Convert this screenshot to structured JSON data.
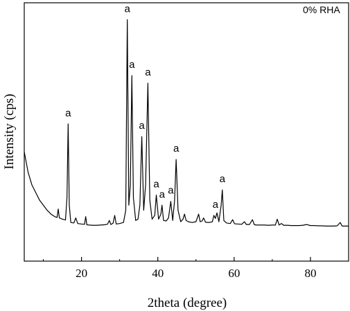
{
  "chart_data": {
    "type": "line",
    "title": "",
    "legend": "0% RHA",
    "legend_position": "top-right",
    "xlabel": "2theta (degree)",
    "ylabel": "Intensity (cps)",
    "xlim": [
      5,
      90
    ],
    "ylim": [
      0,
      100
    ],
    "x_ticks": [
      20,
      40,
      60,
      80
    ],
    "x_tick_labels": [
      "20",
      "40",
      "60",
      "80"
    ],
    "x_minor_ticks": [
      10,
      30,
      50,
      70,
      90
    ],
    "y_ticks_shown": false,
    "grid": false,
    "series": [
      {
        "points": [
          [
            5,
            43
          ],
          [
            6,
            35
          ],
          [
            7,
            30
          ],
          [
            8,
            27
          ],
          [
            9,
            24
          ],
          [
            10,
            22
          ],
          [
            11,
            20
          ],
          [
            12,
            18.5
          ],
          [
            13,
            17.5
          ],
          [
            13.6,
            17.2
          ],
          [
            13.9,
            20.5
          ],
          [
            14.2,
            17
          ],
          [
            15,
            16.5
          ],
          [
            15.8,
            16.2
          ],
          [
            16.2,
            25
          ],
          [
            16.5,
            54
          ],
          [
            16.8,
            22
          ],
          [
            17.2,
            15.2
          ],
          [
            18,
            15
          ],
          [
            18.5,
            17
          ],
          [
            19,
            14.8
          ],
          [
            20,
            14.6
          ],
          [
            20.8,
            14.5
          ],
          [
            21.1,
            17.5
          ],
          [
            21.4,
            14.3
          ],
          [
            22,
            14.2
          ],
          [
            23,
            14.1
          ],
          [
            24,
            14.1
          ],
          [
            25,
            14.2
          ],
          [
            26,
            14.3
          ],
          [
            26.8,
            14.5
          ],
          [
            27.3,
            16
          ],
          [
            27.7,
            14.4
          ],
          [
            28.3,
            15
          ],
          [
            28.7,
            18
          ],
          [
            29.1,
            14.6
          ],
          [
            30,
            14.8
          ],
          [
            31,
            15.2
          ],
          [
            31.6,
            20
          ],
          [
            32,
            95
          ],
          [
            32.4,
            22
          ],
          [
            32.8,
            30
          ],
          [
            33.2,
            73
          ],
          [
            33.6,
            25
          ],
          [
            34.2,
            16
          ],
          [
            34.8,
            16.5
          ],
          [
            35.3,
            22
          ],
          [
            35.8,
            49
          ],
          [
            36.3,
            20
          ],
          [
            36.8,
            30
          ],
          [
            37.4,
            70
          ],
          [
            37.9,
            24
          ],
          [
            38.5,
            16.5
          ],
          [
            39.2,
            18
          ],
          [
            39.6,
            26
          ],
          [
            40.2,
            16.5
          ],
          [
            40.8,
            18.5
          ],
          [
            41.1,
            22
          ],
          [
            41.5,
            16
          ],
          [
            42.2,
            15.8
          ],
          [
            42.8,
            17
          ],
          [
            43.4,
            23.5
          ],
          [
            43.9,
            16
          ],
          [
            44.4,
            24
          ],
          [
            44.8,
            40
          ],
          [
            45.3,
            20
          ],
          [
            46,
            15.5
          ],
          [
            46.6,
            16.5
          ],
          [
            47,
            18.5
          ],
          [
            47.4,
            16
          ],
          [
            48,
            15.5
          ],
          [
            49,
            15.2
          ],
          [
            50,
            15.5
          ],
          [
            50.7,
            18.5
          ],
          [
            51.1,
            15.5
          ],
          [
            51.6,
            15.8
          ],
          [
            52,
            17
          ],
          [
            52.5,
            15.3
          ],
          [
            53.5,
            15.2
          ],
          [
            54.3,
            15.5
          ],
          [
            54.7,
            18
          ],
          [
            55.1,
            16.8
          ],
          [
            55.5,
            19
          ],
          [
            56,
            15.5
          ],
          [
            56.6,
            22
          ],
          [
            56.9,
            28
          ],
          [
            57.3,
            16
          ],
          [
            58,
            15
          ],
          [
            59,
            14.8
          ],
          [
            59.6,
            16.3
          ],
          [
            60.1,
            14.7
          ],
          [
            61,
            14.6
          ],
          [
            62,
            14.5
          ],
          [
            62.7,
            15.5
          ],
          [
            63.2,
            14.4
          ],
          [
            64,
            14.4
          ],
          [
            64.8,
            16.3
          ],
          [
            65.3,
            14.3
          ],
          [
            66,
            14.2
          ],
          [
            67,
            14.2
          ],
          [
            68,
            14.2
          ],
          [
            69,
            14.1
          ],
          [
            70,
            14.2
          ],
          [
            70.8,
            14.2
          ],
          [
            71.3,
            16.5
          ],
          [
            71.8,
            14.2
          ],
          [
            72.4,
            14.8
          ],
          [
            73,
            14.1
          ],
          [
            74,
            14.1
          ],
          [
            75,
            14
          ],
          [
            76,
            14
          ],
          [
            77,
            14
          ],
          [
            78,
            14.1
          ],
          [
            79,
            14.4
          ],
          [
            80,
            14
          ],
          [
            81,
            14
          ],
          [
            82,
            13.9
          ],
          [
            83,
            13.9
          ],
          [
            84,
            13.8
          ],
          [
            85,
            13.8
          ],
          [
            86,
            13.8
          ],
          [
            87,
            13.9
          ],
          [
            87.8,
            15.2
          ],
          [
            88.3,
            13.8
          ],
          [
            89,
            13.8
          ],
          [
            90,
            13.8
          ]
        ]
      }
    ],
    "annotations": [
      {
        "text": "a",
        "x": 16.5,
        "y": 57
      },
      {
        "text": "a",
        "x": 32.0,
        "y": 98
      },
      {
        "text": "a",
        "x": 33.2,
        "y": 76
      },
      {
        "text": "a",
        "x": 37.4,
        "y": 73
      },
      {
        "text": "a",
        "x": 35.8,
        "y": 52
      },
      {
        "text": "a",
        "x": 44.8,
        "y": 43
      },
      {
        "text": "a",
        "x": 39.6,
        "y": 29
      },
      {
        "text": "a",
        "x": 41.1,
        "y": 25
      },
      {
        "text": "a",
        "x": 43.4,
        "y": 26.5
      },
      {
        "text": "a",
        "x": 56.9,
        "y": 31
      },
      {
        "text": "a",
        "x": 55.1,
        "y": 21
      }
    ]
  },
  "colors": {
    "line": "#000000",
    "axis": "#000000",
    "background": "#ffffff"
  }
}
